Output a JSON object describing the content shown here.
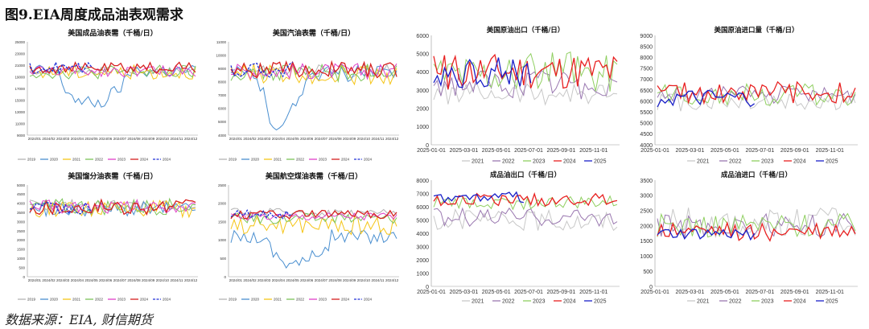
{
  "figure_title": "图9.EIA周度成品油表观需求",
  "source": "数据来源：EIA, 财信期货",
  "colors": {
    "2019": "#b3b3b3",
    "2020": "#4a8fd0",
    "2021": "#f5c518",
    "2022": "#7cc45a",
    "2023": "#e040c8",
    "2024": "#d62020",
    "2024b": "#2030d8",
    "2021n": "#c8c8c8",
    "2022n": "#9a78b0",
    "2023n": "#8fcf60",
    "2024n": "#e82020",
    "2025": "#1a20c8"
  },
  "chart_data": [
    {
      "type": "line",
      "title": "美国成品油表需（千桶/日）",
      "yticks": [
        "9000",
        "11000",
        "13000",
        "15000",
        "17000",
        "19000",
        "21000",
        "23000",
        "25000"
      ],
      "ylim": [
        9000,
        25000
      ],
      "xticks": [
        "2024/01",
        "2024/02",
        "2024/03",
        "2024/04",
        "2024/05",
        "2024/06",
        "2024/07",
        "2024/08",
        "2024/09",
        "2024/10",
        "2024/11",
        "2024/12"
      ],
      "legend": [
        "2019",
        "2020",
        "2021",
        "2022",
        "2023",
        "2024",
        "2024"
      ],
      "series_keys": [
        "2019",
        "2020",
        "2021",
        "2022",
        "2023",
        "2024",
        "2024b"
      ],
      "base": [
        20000,
        20000,
        19800,
        19800,
        20000,
        20500
      ],
      "amp": [
        700,
        1200,
        1200,
        1200,
        1000,
        1000
      ],
      "dip": [
        {
          "s": 1,
          "start": 8,
          "end": 30,
          "depth": 5500
        }
      ],
      "short": {
        "6": 20
      }
    },
    {
      "type": "line",
      "title": "美国汽油表需（千桶/日）",
      "yticks": [
        "4000",
        "5000",
        "6000",
        "7000",
        "8000",
        "9000",
        "10000",
        "11000"
      ],
      "ylim": [
        4000,
        11000
      ],
      "xticks": [
        "2024/01",
        "2024/02",
        "2024/03",
        "2024/04",
        "2024/05",
        "2024/06",
        "2024/07",
        "2024/08",
        "2024/09",
        "2024/10",
        "2024/11",
        "2024/12"
      ],
      "legend": [
        "2019",
        "2020",
        "2021",
        "2022",
        "2023",
        "2024",
        "2024"
      ],
      "series_keys": [
        "2019",
        "2020",
        "2021",
        "2022",
        "2023",
        "2024",
        "2024b"
      ],
      "base": [
        8800,
        8600,
        8600,
        8700,
        8800,
        8900
      ],
      "amp": [
        500,
        600,
        800,
        700,
        600,
        600
      ],
      "dip": [
        {
          "s": 1,
          "start": 8,
          "end": 22,
          "depth": 3700
        }
      ],
      "short": {
        "6": 20
      }
    },
    {
      "type": "line",
      "title": "美国原油出口（千桶/日）",
      "yticks": [
        "0",
        "1000",
        "2000",
        "3000",
        "4000",
        "5000",
        "6000"
      ],
      "ylim": [
        0,
        6000
      ],
      "xticks": [
        "2025-01-01",
        "2025-03-01",
        "2025-05-01",
        "2025-07-01",
        "2025-09-01",
        "2025-11-01"
      ],
      "legend": [
        "2021",
        "2022",
        "2023",
        "2024",
        "2025"
      ],
      "series_keys": [
        "2021n",
        "2022n",
        "2023n",
        "2024n",
        "2025"
      ],
      "base": [
        2800,
        3300,
        4000,
        4000,
        4000
      ],
      "amp": [
        600,
        800,
        1100,
        1000,
        900
      ],
      "dip": [],
      "short": {
        "4": 28
      }
    },
    {
      "type": "line",
      "title": "美国原油进口量（千桶/日）",
      "yticks": [
        "4000",
        "4500",
        "5000",
        "5500",
        "6000",
        "6500",
        "7000",
        "7500",
        "8000",
        "8500",
        "9000"
      ],
      "ylim": [
        4000,
        9000
      ],
      "xticks": [
        "2025-01-01",
        "2025-03-01",
        "2025-05-01",
        "2025-07-01",
        "2025-09-01",
        "2025-11-01"
      ],
      "legend": [
        "2021",
        "2022",
        "2023",
        "2024",
        "2025"
      ],
      "series_keys": [
        "2021n",
        "2022n",
        "2023n",
        "2024n",
        "2025"
      ],
      "base": [
        6000,
        6300,
        6300,
        6400,
        6100
      ],
      "amp": [
        500,
        400,
        500,
        500,
        400
      ],
      "dip": [],
      "short": {
        "4": 26
      }
    },
    {
      "type": "line",
      "title": "美国馏分油表需（千桶/日）",
      "yticks": [
        "0",
        "500",
        "1000",
        "1500",
        "2000",
        "2500",
        "3000",
        "3500",
        "4000",
        "4500",
        "5000"
      ],
      "ylim": [
        0,
        5000
      ],
      "xticks": [
        "2024/01",
        "2024/02",
        "2024/03",
        "2024/04",
        "2024/05",
        "2024/06",
        "2024/07",
        "2024/08",
        "2024/09",
        "2024/10",
        "2024/11",
        "2024/12"
      ],
      "legend": [
        "2019",
        "2020",
        "2021",
        "2022",
        "2023",
        "2024",
        "2024"
      ],
      "series_keys": [
        "2019",
        "2020",
        "2021",
        "2022",
        "2023",
        "2024",
        "2024b"
      ],
      "base": [
        3900,
        3700,
        3700,
        3800,
        3800,
        3800
      ],
      "amp": [
        300,
        400,
        450,
        450,
        400,
        400
      ],
      "dip": [],
      "short": {
        "6": 20
      }
    },
    {
      "type": "line",
      "title": "美国航空煤油表需（千桶/日）",
      "yticks": [
        "0",
        "500",
        "1000",
        "1500",
        "2000",
        "2500"
      ],
      "ylim": [
        0,
        2500
      ],
      "xticks": [
        "2024/01",
        "2024/02",
        "2024/03",
        "2024/04",
        "2024/05",
        "2024/06",
        "2024/07",
        "2024/08",
        "2024/09",
        "2024/10",
        "2024/11",
        "2024/12"
      ],
      "legend": [
        "2019",
        "2020",
        "2021",
        "2022",
        "2023",
        "2024",
        "2024"
      ],
      "series_keys": [
        "2019",
        "2020",
        "2021",
        "2022",
        "2023",
        "2024",
        "2024b"
      ],
      "base": [
        1750,
        1100,
        1400,
        1600,
        1650,
        1700
      ],
      "amp": [
        120,
        200,
        250,
        150,
        120,
        120
      ],
      "dip": [
        {
          "s": 1,
          "start": 10,
          "end": 30,
          "depth": 700
        }
      ],
      "short": {
        "6": 20
      }
    },
    {
      "type": "line",
      "title": "成品油出口（千桶/日）",
      "yticks": [
        "0",
        "1000",
        "2000",
        "3000",
        "4000",
        "5000",
        "6000",
        "7000",
        "8000"
      ],
      "ylim": [
        0,
        8000
      ],
      "xticks": [
        "2025-01-01",
        "2025-03-01",
        "2025-05-01",
        "2025-07-01",
        "2025-09-01",
        "2025-11-01"
      ],
      "legend": [
        "2021",
        "2022",
        "2023",
        "2024",
        "2025"
      ],
      "series_keys": [
        "2021n",
        "2022n",
        "2023n",
        "2024n",
        "2025"
      ],
      "base": [
        5000,
        5200,
        6300,
        6500,
        6700
      ],
      "amp": [
        800,
        700,
        500,
        500,
        400
      ],
      "dip": [],
      "short": {
        "4": 26
      }
    },
    {
      "type": "line",
      "title": "成品油进口（千桶/日）",
      "yticks": [
        "0",
        "500",
        "1000",
        "1500",
        "2000",
        "2500",
        "3000",
        "3500"
      ],
      "ylim": [
        0,
        3500
      ],
      "xticks": [
        "2025-01-01",
        "2025-03-01",
        "2025-05-01",
        "2025-07-01",
        "2025-09-01",
        "2025-11-01"
      ],
      "legend": [
        "2021",
        "2022",
        "2023",
        "2024",
        "2025"
      ],
      "series_keys": [
        "2021n",
        "2022n",
        "2023n",
        "2024n",
        "2025"
      ],
      "base": [
        2100,
        2000,
        2000,
        1800,
        1700
      ],
      "amp": [
        500,
        400,
        400,
        300,
        200
      ],
      "dip": [],
      "short": {
        "4": 26
      }
    }
  ]
}
